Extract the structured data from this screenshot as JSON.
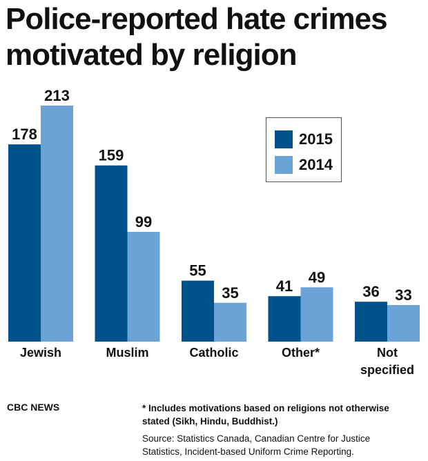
{
  "header": {
    "title_lines": [
      "Police-reported hate crimes",
      "motivated by religion"
    ]
  },
  "chart_data": {
    "type": "bar",
    "title": "Police-reported hate crimes motivated by religion",
    "categories": [
      [
        "Jewish"
      ],
      [
        "Muslim"
      ],
      [
        "Catholic"
      ],
      [
        "Other*"
      ],
      [
        "Not",
        "specified"
      ]
    ],
    "series": [
      {
        "name": "2015",
        "color": "#00528a",
        "values": [
          178,
          159,
          55,
          41,
          36
        ]
      },
      {
        "name": "2014",
        "color": "#6ba3d6",
        "values": [
          213,
          99,
          35,
          49,
          33
        ]
      }
    ],
    "xlabel": "",
    "ylabel": "",
    "ylim": [
      0,
      213
    ],
    "grid": false,
    "legend_position": "top-right",
    "data_labels": true
  },
  "legend": {
    "items": [
      {
        "label": "2015",
        "color": "#00528a"
      },
      {
        "label": "2014",
        "color": "#6ba3d6"
      }
    ]
  },
  "footer": {
    "brand": "CBC NEWS",
    "footnote_lines": [
      "* Includes motivations based on religions not otherwise",
      "stated (Sikh, Hindu, Buddhist.)"
    ],
    "source_lines": [
      "Source: Statistics Canada, Canadian Centre for Justice",
      "Statistics, Incident-based Uniform Crime Reporting."
    ]
  }
}
